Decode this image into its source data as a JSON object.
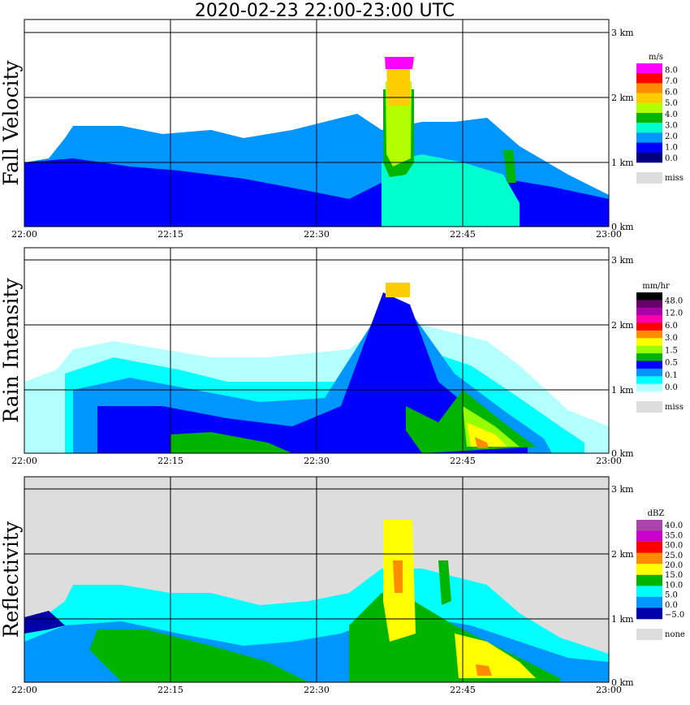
{
  "title": "2020-02-23   22:00-23:00 UTC",
  "chart_data": [
    {
      "type": "heatmap",
      "ylabel": "Fall Velocity",
      "x_ticks": [
        "22:00",
        "22:15",
        "22:30",
        "22:45",
        "23:00"
      ],
      "y_ticks": [
        "0 km",
        "1 km",
        "2 km",
        "3 km"
      ],
      "ylim_km": [
        0,
        3.05
      ],
      "legend": {
        "unit": "m/s",
        "colors": [
          "#ff00ff",
          "#ff0000",
          "#ff8c00",
          "#ffcc00",
          "#b4ff00",
          "#00b400",
          "#00ffcc",
          "#0096ff",
          "#0000ff",
          "#000080"
        ],
        "labels": [
          "8.0",
          "7.0",
          "6.0",
          "5.0",
          "4.0",
          "3.0",
          "2.0",
          "1.0",
          "0.0"
        ],
        "miss": "miss"
      }
    },
    {
      "type": "heatmap",
      "ylabel": "Rain Intensity",
      "x_ticks": [
        "22:00",
        "22:15",
        "22:30",
        "22:45",
        "23:00"
      ],
      "y_ticks": [
        "0 km",
        "1 km",
        "2 km",
        "3 km"
      ],
      "ylim_km": [
        0,
        3.05
      ],
      "legend": {
        "unit": "mm/hr",
        "colors": [
          "#000000",
          "#660066",
          "#aa00aa",
          "#ff00aa",
          "#ff0000",
          "#ff8c00",
          "#ffff00",
          "#96ff00",
          "#00b400",
          "#0000ff",
          "#0096ff",
          "#00ffff",
          "#b4ffff"
        ],
        "labels": [
          "48.0",
          "12.0",
          "6.0",
          "3.0",
          "1.5",
          "0.5",
          "0.1",
          "0.0"
        ],
        "miss": "miss"
      }
    },
    {
      "type": "heatmap",
      "ylabel": "Reflectivity",
      "x_ticks": [
        "22:00",
        "22:15",
        "22:30",
        "22:45",
        "23:00"
      ],
      "y_ticks": [
        "0 km",
        "1 km",
        "2 km",
        "3 km"
      ],
      "ylim_km": [
        0,
        3.05
      ],
      "legend": {
        "unit": "dBZ",
        "colors": [
          "#aa44aa",
          "#cc00cc",
          "#ff0000",
          "#ff8c00",
          "#ffff00",
          "#00b400",
          "#00ffff",
          "#0096ff",
          "#0000aa"
        ],
        "labels": [
          "40.0",
          "35.0",
          "30.0",
          "25.0",
          "20.0",
          "15.0",
          "10.0",
          "5.0",
          "0.0",
          "−5.0"
        ],
        "miss": "none"
      }
    }
  ]
}
